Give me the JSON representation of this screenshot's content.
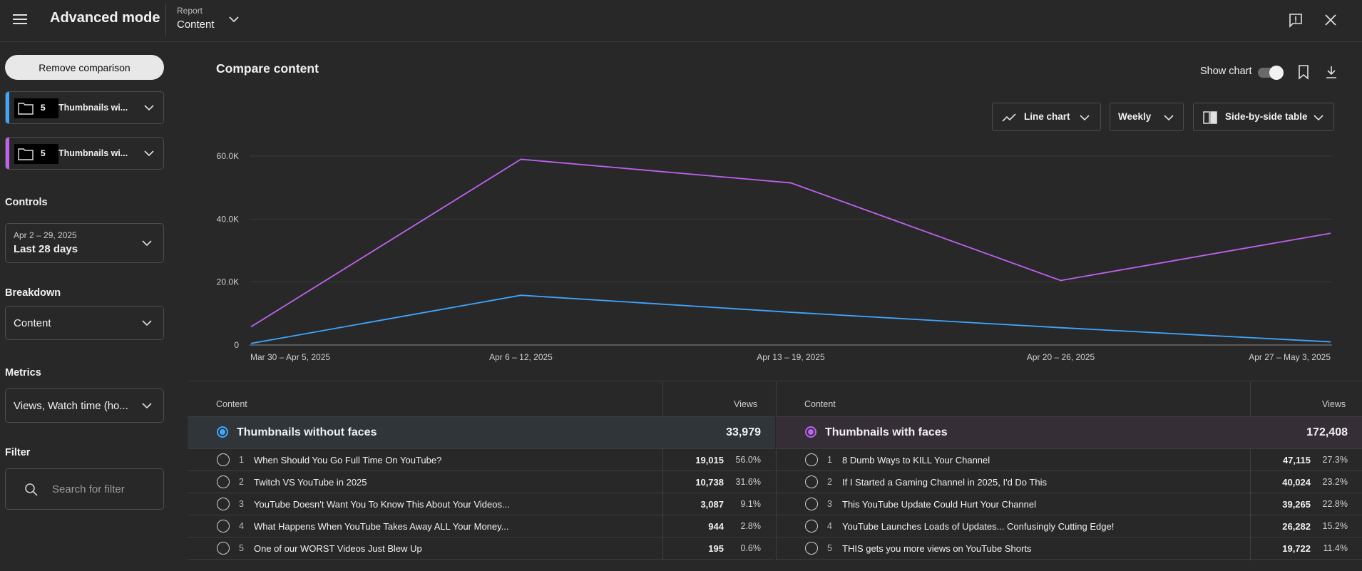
{
  "header": {
    "app_title": "Advanced mode",
    "report_label": "Report",
    "report_value": "Content"
  },
  "sidebar": {
    "remove_button": "Remove comparison",
    "groups": [
      {
        "count": "5",
        "name": "Thumbnails wi...",
        "color": "#3ea6ff"
      },
      {
        "count": "5",
        "name": "Thumbnails wi...",
        "color": "#c061f0"
      }
    ],
    "controls_title": "Controls",
    "date_range_small": "Apr 2 – 29, 2025",
    "date_range_value": "Last 28 days",
    "breakdown_title": "Breakdown",
    "breakdown_value": "Content",
    "metrics_title": "Metrics",
    "metrics_value": "Views, Watch time (ho...",
    "filter_title": "Filter",
    "filter_placeholder": "Search for filter"
  },
  "main": {
    "title": "Compare content",
    "show_chart_label": "Show chart",
    "chart_type_label": "Line chart",
    "interval_label": "Weekly",
    "table_mode_label": "Side-by-side table"
  },
  "chart_data": {
    "type": "line",
    "title": "Compare content",
    "x": [
      "Mar 30 – Apr 5, 2025",
      "Apr 6 – 12, 2025",
      "Apr 13 – 19, 2025",
      "Apr 20 – 26, 2025",
      "Apr 27 – May 3, 2025"
    ],
    "y_ticks": [
      "0",
      "20.0K",
      "40.0K",
      "60.0K"
    ],
    "y_tick_values": [
      0,
      20000,
      40000,
      60000
    ],
    "ylim": [
      0,
      60000
    ],
    "xlabel": "",
    "ylabel": "",
    "grid": true,
    "series": [
      {
        "name": "Thumbnails with faces",
        "color": "#c061f0",
        "values": [
          5800,
          59000,
          51500,
          20500,
          35500
        ]
      },
      {
        "name": "Thumbnails without faces",
        "color": "#3ea6ff",
        "values": [
          500,
          15800,
          10400,
          5500,
          1000
        ]
      }
    ]
  },
  "tables": [
    {
      "header_content": "Content",
      "header_views": "Views",
      "total_name": "Thumbnails without faces",
      "total_views": "33,979",
      "accent": "#3ea6ff",
      "total_bg": "#2f3539",
      "rows": [
        {
          "rank": "1",
          "title": "When Should You Go Full Time On YouTube?",
          "views": "19,015",
          "pct": "56.0%"
        },
        {
          "rank": "2",
          "title": "Twitch VS YouTube in 2025",
          "views": "10,738",
          "pct": "31.6%"
        },
        {
          "rank": "3",
          "title": "YouTube Doesn't Want You To Know This About Your Videos...",
          "views": "3,087",
          "pct": "9.1%"
        },
        {
          "rank": "4",
          "title": "What Happens When YouTube Takes Away ALL Your Money...",
          "views": "944",
          "pct": "2.8%"
        },
        {
          "rank": "5",
          "title": "One of our WORST Videos Just Blew Up",
          "views": "195",
          "pct": "0.6%"
        }
      ]
    },
    {
      "header_content": "Content",
      "header_views": "Views",
      "total_name": "Thumbnails with faces",
      "total_views": "172,408",
      "accent": "#c061f0",
      "total_bg": "#352e37",
      "rows": [
        {
          "rank": "1",
          "title": "8 Dumb Ways to KILL Your Channel",
          "views": "47,115",
          "pct": "27.3%"
        },
        {
          "rank": "2",
          "title": "If I Started a Gaming Channel in 2025, I'd Do This",
          "views": "40,024",
          "pct": "23.2%"
        },
        {
          "rank": "3",
          "title": "This YouTube Update Could Hurt Your Channel",
          "views": "39,265",
          "pct": "22.8%"
        },
        {
          "rank": "4",
          "title": "YouTube Launches Loads of Updates... Confusingly Cutting Edge!",
          "views": "26,282",
          "pct": "15.2%"
        },
        {
          "rank": "5",
          "title": "THIS gets you more views on YouTube Shorts",
          "views": "19,722",
          "pct": "11.4%"
        }
      ]
    }
  ]
}
